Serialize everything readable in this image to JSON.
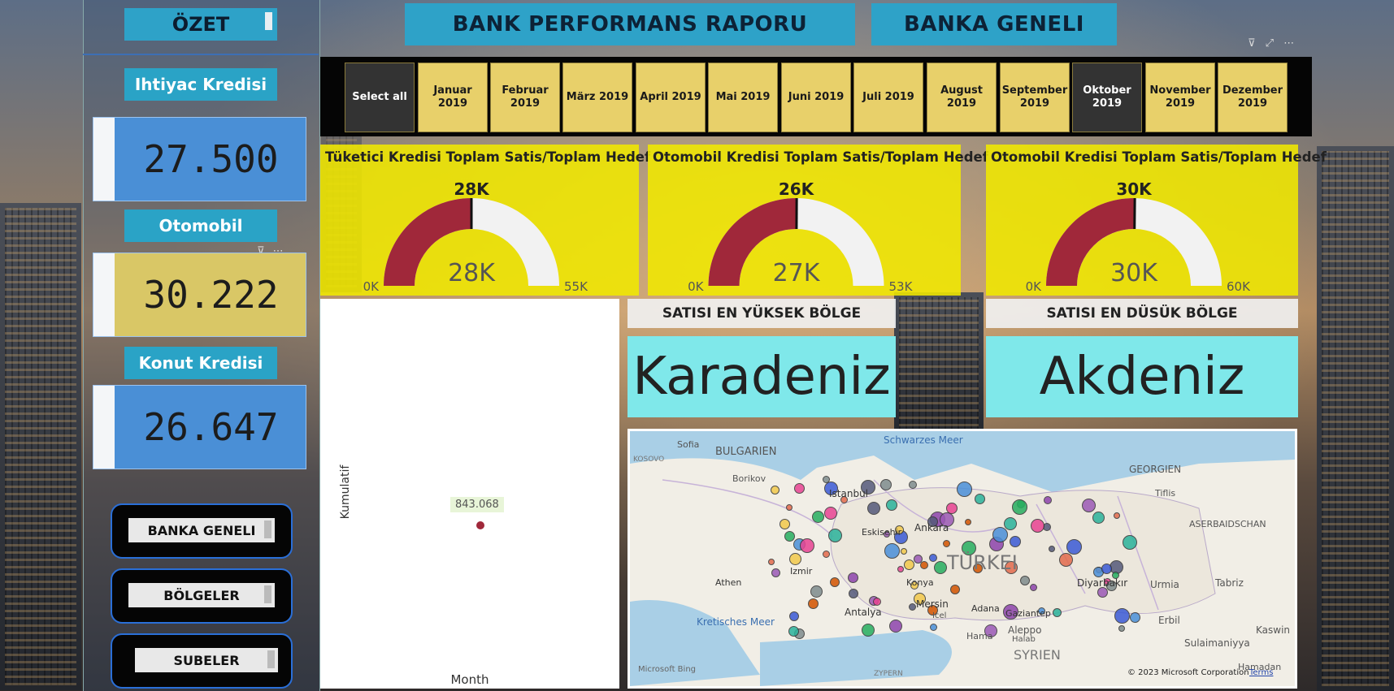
{
  "sidebar": {
    "title": "ÖZET",
    "categories": [
      {
        "label": "Ihtiyac Kredisi",
        "value": "27.500"
      },
      {
        "label": "Otomobil",
        "value": "30.222"
      },
      {
        "label": "Konut Kredisi",
        "value": "26.647"
      }
    ],
    "nav": [
      {
        "label": "BANKA GENELI"
      },
      {
        "label": "BÖLGELER"
      },
      {
        "label": "SUBELER"
      }
    ]
  },
  "header": {
    "title": "BANK PERFORMANS RAPORU",
    "subtitle": "BANKA GENELI"
  },
  "slicer": {
    "select_all": "Select all",
    "months": [
      {
        "label": "Januar 2019",
        "selected": false
      },
      {
        "label": "Februar 2019",
        "selected": false
      },
      {
        "label": "März 2019",
        "selected": false
      },
      {
        "label": "April 2019",
        "selected": false
      },
      {
        "label": "Mai 2019",
        "selected": false
      },
      {
        "label": "Juni 2019",
        "selected": false
      },
      {
        "label": "Juli 2019",
        "selected": false
      },
      {
        "label": "August 2019",
        "selected": false
      },
      {
        "label": "September 2019",
        "selected": false
      },
      {
        "label": "Oktober 2019",
        "selected": true
      },
      {
        "label": "November 2019",
        "selected": false
      },
      {
        "label": "Dezember 2019",
        "selected": false
      }
    ]
  },
  "gauges": [
    {
      "title": "Tüketici Kredisi Toplam Satis/Toplam Hedef",
      "target_label": "28K",
      "value_label": "28K",
      "min_label": "0K",
      "max_label": "55K",
      "value": 27.5,
      "max": 55
    },
    {
      "title": "Otomobil Kredisi Toplam Satis/Toplam Hedef",
      "target_label": "26K",
      "value_label": "27K",
      "min_label": "0K",
      "max_label": "53K",
      "value": 26.6,
      "max": 53
    },
    {
      "title": "Otomobil Kredisi Toplam Satis/Toplam Hedef",
      "target_label": "30K",
      "value_label": "30K",
      "min_label": "0K",
      "max_label": "60K",
      "value": 30.2,
      "max": 60
    }
  ],
  "regions": {
    "highest_label": "SATISI EN YÜKSEK BÖLGE",
    "highest_value": "Karadeniz",
    "lowest_label": "SATISI EN DÜSÜK BÖLGE",
    "lowest_value": "Akdeniz"
  },
  "scatter": {
    "ylabel": "Kumulatif",
    "xlabel": "Month",
    "point_label": "843.068"
  },
  "map": {
    "labels": [
      "Schwarzes Meer",
      "BULGARIEN",
      "Sofia",
      "KOSOVO",
      "GEORGIEN",
      "Tiflis",
      "Istanbul",
      "Ankara",
      "Eskisehir",
      "TÜRKEI",
      "Izmir",
      "Athen",
      "Konya",
      "Antalya",
      "Mersin",
      "Adana",
      "Gaziantep",
      "Diyarbakır",
      "ASERBAIDSCHAN",
      "Urmia",
      "Tabriz",
      "Erbil",
      "Kretisches Meer",
      "Aleppo",
      "Halab",
      "Hama",
      "SYRIEN",
      "Sulaimaniyya",
      "Kaswin",
      "Borikov",
      "Icel",
      "ZYPERN",
      "Hamadan"
    ],
    "brand": "Microsoft Bing",
    "copyright": "© 2023 Microsoft Corporation",
    "terms": "Terms"
  },
  "colors": {
    "accent": "#2ea2c8",
    "gauge_fill": "#a0283a",
    "gauge_bg": "#f2f2f2",
    "card_yellow": "#f0e800",
    "region_cyan": "#7fe8ea"
  }
}
